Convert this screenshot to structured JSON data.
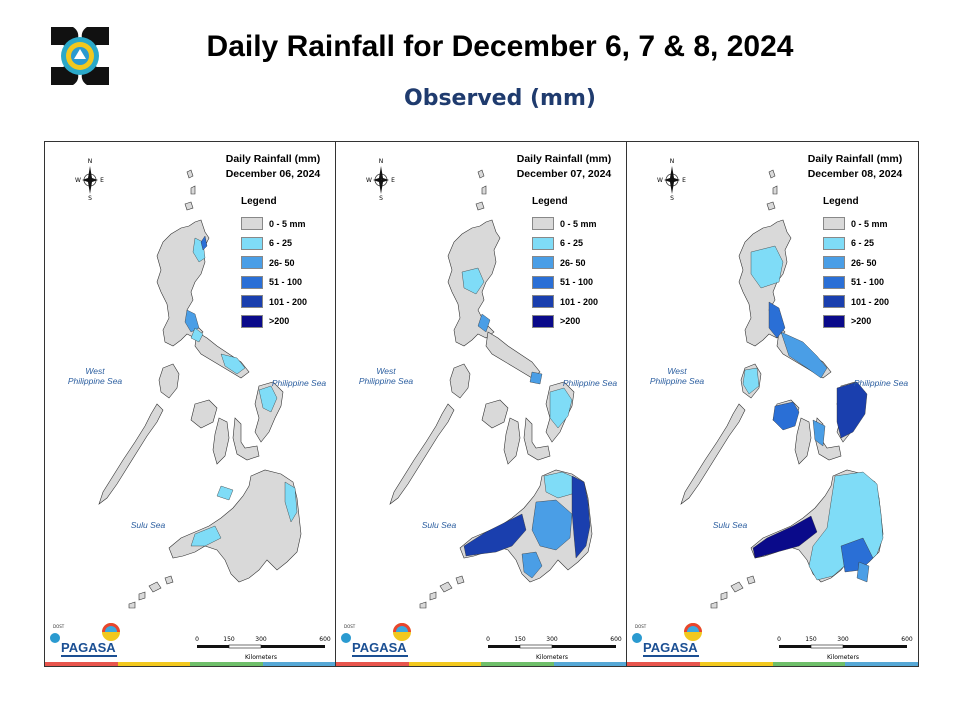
{
  "header": {
    "title": "Daily Rainfall for December 6, 7 & 8, 2024",
    "subtitle": "Observed (mm)"
  },
  "panels": [
    {
      "heading": "Daily Rainfall (mm)",
      "date": "December 06, 2024"
    },
    {
      "heading": "Daily Rainfall (mm)",
      "date": "December 07, 2024"
    },
    {
      "heading": "Daily Rainfall (mm)",
      "date": "December 08, 2024"
    }
  ],
  "legend": {
    "title": "Legend",
    "classes": [
      {
        "label": "0 - 5 mm",
        "color": "#d9d9d9"
      },
      {
        "label": "6 - 25",
        "color": "#7fdcf7"
      },
      {
        "label": "26- 50",
        "color": "#4a9ee6"
      },
      {
        "label": "51 - 100",
        "color": "#2a6fd6"
      },
      {
        "label": "101 - 200",
        "color": "#1a3fae"
      },
      {
        "label": ">200",
        "color": "#0a0a8a"
      }
    ]
  },
  "labels": {
    "west_sea_1": "West",
    "west_sea_2": "Philippine Sea",
    "east_sea": "Philippine Sea",
    "sulu_sea": "Sulu Sea"
  },
  "compass": {
    "n": "N",
    "s": "S",
    "e": "E",
    "w": "W"
  },
  "scale": {
    "t0": "0",
    "t1": "150",
    "t2": "300",
    "t3": "600",
    "unit": "Kilometers"
  },
  "branding": {
    "name": "PAGASA",
    "dost": "DOST"
  }
}
